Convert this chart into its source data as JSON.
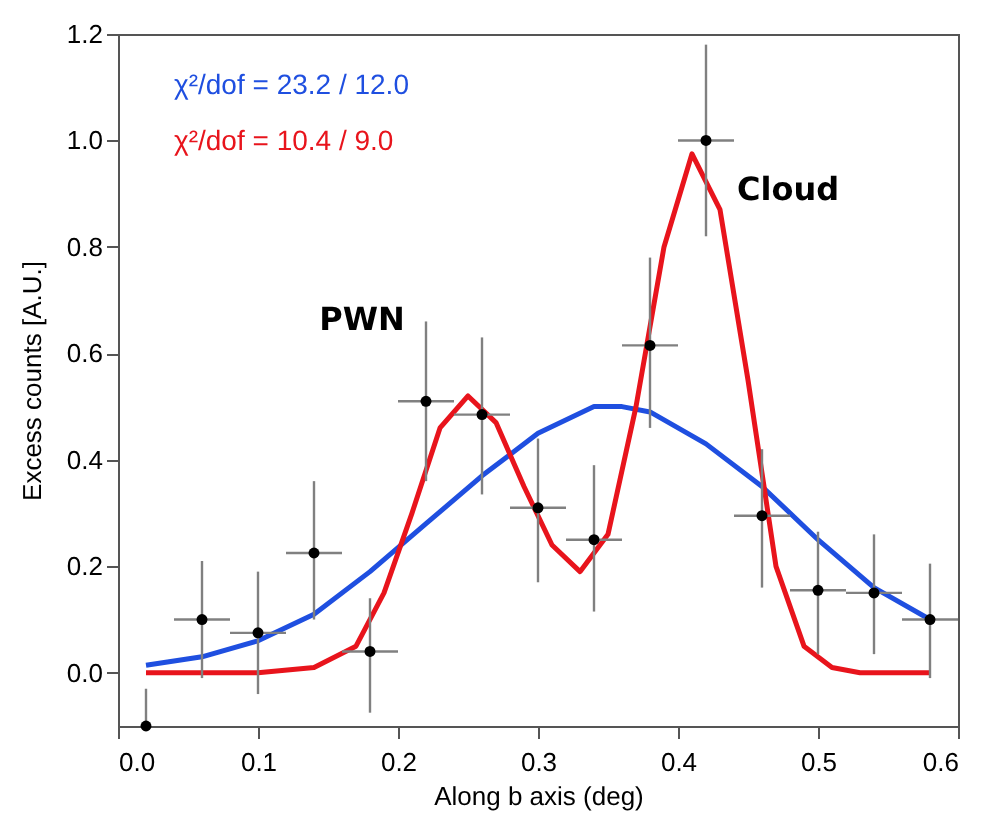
{
  "chart_data": {
    "type": "scatter",
    "xlabel": "Along b axis (deg)",
    "ylabel": "Excess counts [A.U.]",
    "xlim": [
      0,
      0.6
    ],
    "xticks": [
      {
        "value": 0,
        "label": "0.0"
      },
      0.1,
      0.2,
      0.3,
      0.4,
      0.5,
      0.6
    ],
    "ylim": [
      -0.1,
      1.2
    ],
    "yticks": [
      {
        "value": 0,
        "label": "0.0"
      },
      0.2,
      0.4,
      0.6,
      0.8,
      {
        "value": 1,
        "label": "1.0"
      },
      1.2
    ],
    "grid": false,
    "legend": "top left",
    "line_style": "solid",
    "series": [
      {
        "name": "χ²/dof = 23.2 / 12.0",
        "type": "line",
        "color": "#1f4fe0",
        "x": [
          0.02,
          0.06,
          0.1,
          0.14,
          0.18,
          0.22,
          0.26,
          0.3,
          0.34,
          0.36,
          0.38,
          0.42,
          0.46,
          0.5,
          0.54,
          0.58
        ],
        "values": [
          0.014,
          0.03,
          0.06,
          0.11,
          0.19,
          0.28,
          0.37,
          0.45,
          0.5,
          0.5,
          0.49,
          0.43,
          0.35,
          0.25,
          0.16,
          0.1
        ]
      },
      {
        "name": "χ²/dof = 10.4 / 9.0",
        "type": "line",
        "color": "#e8141c",
        "x": [
          0.02,
          0.1,
          0.14,
          0.17,
          0.19,
          0.21,
          0.23,
          0.25,
          0.27,
          0.29,
          0.31,
          0.33,
          0.35,
          0.37,
          0.39,
          0.41,
          0.43,
          0.45,
          0.47,
          0.49,
          0.51,
          0.53,
          0.58
        ],
        "values": [
          0,
          0,
          0.01,
          0.05,
          0.15,
          0.3,
          0.46,
          0.52,
          0.47,
          0.35,
          0.24,
          0.19,
          0.26,
          0.5,
          0.8,
          0.975,
          0.87,
          0.55,
          0.2,
          0.05,
          0.01,
          0,
          0
        ]
      },
      {
        "marker": "circle",
        "color": "#000000",
        "x": [
          0.02,
          0.06,
          0.1,
          0.14,
          0.18,
          0.22,
          0.26,
          0.3,
          0.34,
          0.38,
          0.42,
          0.46,
          0.5,
          0.54,
          0.58
        ],
        "values": [
          -0.1,
          0.1,
          0.075,
          0.225,
          0.04,
          0.51,
          0.485,
          0.31,
          0.25,
          0.615,
          1.0,
          0.295,
          0.155,
          0.15,
          0.1
        ],
        "errors": [
          [
            -0.1,
            -0.03
          ],
          [
            -0.01,
            0.21
          ],
          [
            -0.04,
            0.19
          ],
          [
            0.1,
            0.36
          ],
          [
            -0.075,
            0.14
          ],
          [
            0.36,
            0.66
          ],
          [
            0.335,
            0.63
          ],
          [
            0.17,
            0.44
          ],
          [
            0.115,
            0.39
          ],
          [
            0.46,
            0.78
          ],
          [
            0.82,
            1.18
          ],
          [
            0.16,
            0.42
          ],
          [
            0.035,
            0.265
          ],
          [
            0.035,
            0.26
          ],
          [
            -0.01,
            0.205
          ]
        ],
        "xerrors": [
          null,
          0.02,
          0.02,
          0.02,
          0.02,
          0.02,
          0.02,
          0.02,
          0.02,
          0.02,
          0.02,
          0.02,
          0.02,
          0.02,
          0.02
        ]
      }
    ],
    "annotations": [
      "PWN",
      "Cloud"
    ]
  }
}
